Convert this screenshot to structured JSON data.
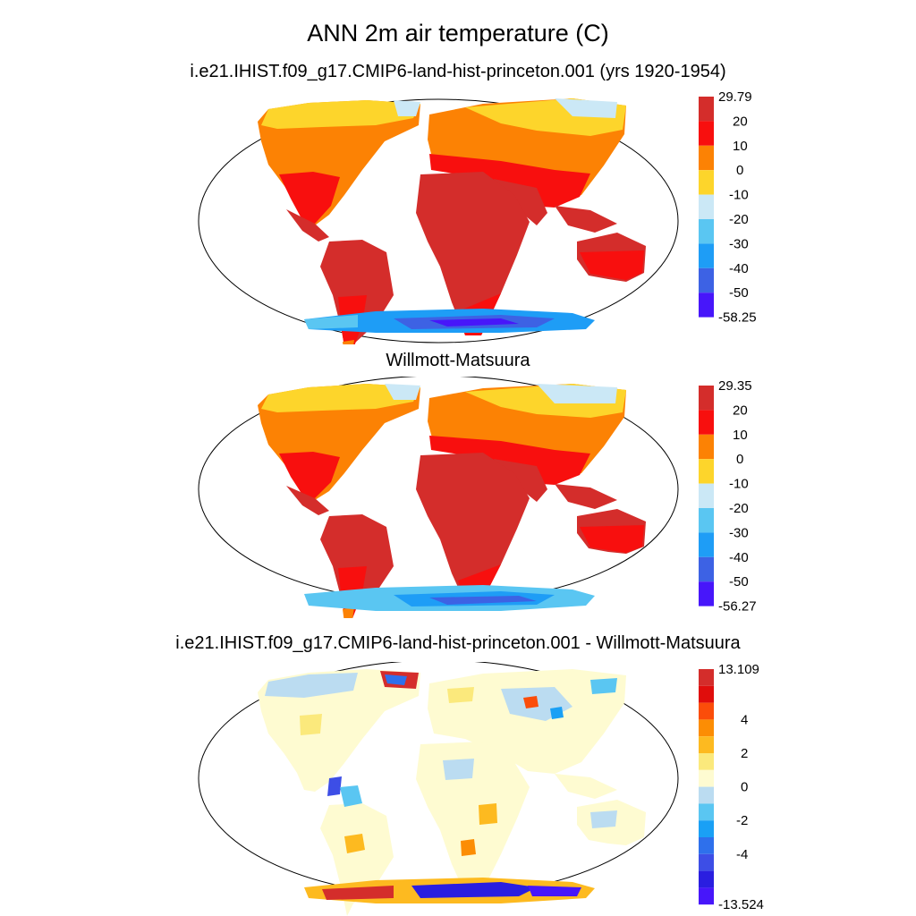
{
  "title": "ANN 2m air temperature (C)",
  "panels": [
    {
      "title": "i.e21.IHIST.f09_g17.CMIP6-land-hist-princeton.001 (yrs 1920-1954)",
      "colorbar": {
        "colors": [
          "#d42d2b",
          "#f80f0e",
          "#fc8204",
          "#fdd52b",
          "#cbe8f6",
          "#5ac6f2",
          "#1e9df6",
          "#3d62e4",
          "#4716fa"
        ],
        "labels": [
          "29.79",
          "20",
          "10",
          "0",
          "-10",
          "-20",
          "-30",
          "-40",
          "-50",
          "-58.25"
        ]
      }
    },
    {
      "title": "Willmott-Matsuura",
      "colorbar": {
        "colors": [
          "#d42d2b",
          "#f80f0e",
          "#fc8204",
          "#fdd52b",
          "#cbe8f6",
          "#5ac6f2",
          "#1e9df6",
          "#3d62e4",
          "#4716fa"
        ],
        "labels": [
          "29.35",
          "20",
          "10",
          "0",
          "-10",
          "-20",
          "-30",
          "-40",
          "-50",
          "-56.27"
        ]
      }
    },
    {
      "title": "i.e21.IHIST.f09_g17.CMIP6-land-hist-princeton.001 - Willmott-Matsuura",
      "colorbar": {
        "colors": [
          "#d42d2b",
          "#e00d0c",
          "#fb4d0a",
          "#fc8d04",
          "#fdba20",
          "#fbe97c",
          "#fefbd1",
          "#bbdcf1",
          "#5ac6f2",
          "#1aa0f5",
          "#2e70ec",
          "#3d4ee6",
          "#2a1ee0",
          "#4716fa"
        ],
        "labels": [
          "13.109",
          "",
          "",
          "4",
          "",
          "2",
          "",
          "0",
          "",
          "-2",
          "",
          "-4",
          "",
          "",
          "-13.524"
        ]
      }
    }
  ]
}
